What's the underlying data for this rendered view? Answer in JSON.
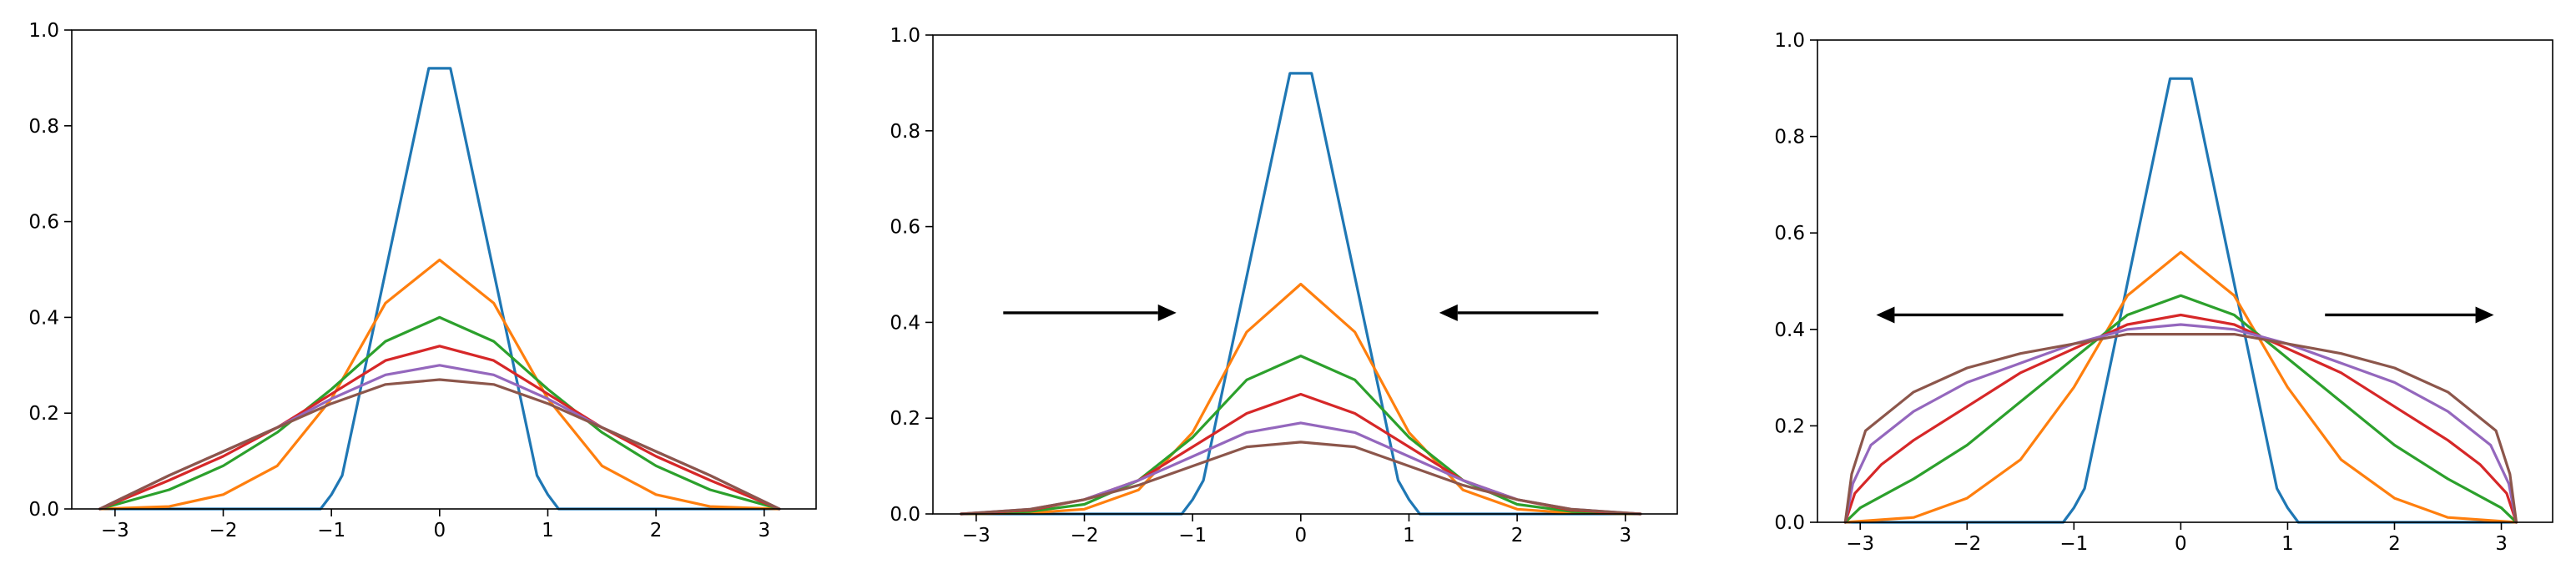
{
  "figure": {
    "series_colors": [
      "#1f77b4",
      "#ff7f0e",
      "#2ca02c",
      "#d62728",
      "#9467bd",
      "#8c564b"
    ],
    "axis_color": "#000000",
    "arrow_color": "#000000"
  },
  "chart_data": [
    {
      "type": "line",
      "title": "",
      "xlabel": "",
      "ylabel": "",
      "xlim": [
        -3.4,
        3.48
      ],
      "ylim": [
        0,
        1.0
      ],
      "xticks": [
        -3,
        -2,
        -1,
        0,
        1,
        2,
        3
      ],
      "xtick_labels": [
        "−3",
        "−2",
        "−1",
        "0",
        "1",
        "2",
        "3"
      ],
      "yticks": [
        0.0,
        0.2,
        0.4,
        0.6,
        0.8,
        1.0
      ],
      "ytick_labels": [
        "0.0",
        "0.2",
        "0.4",
        "0.6",
        "0.8",
        "1.0"
      ],
      "grid": false,
      "legend": null,
      "annotations": [],
      "series": [
        {
          "color": "#1f77b4",
          "x": [
            -3.14,
            -1.1,
            -1.0,
            -0.9,
            -0.1,
            0.1,
            0.9,
            1.0,
            1.1,
            3.14
          ],
          "y": [
            0.0,
            0.0,
            0.03,
            0.07,
            0.92,
            0.92,
            0.07,
            0.03,
            0.0,
            0.0
          ]
        },
        {
          "color": "#ff7f0e",
          "x": [
            -3.14,
            -2.5,
            -2.0,
            -1.5,
            -1.0,
            -0.5,
            0.0,
            0.5,
            1.0,
            1.5,
            2.0,
            2.5,
            3.14
          ],
          "y": [
            0.0,
            0.005,
            0.03,
            0.09,
            0.23,
            0.43,
            0.52,
            0.43,
            0.23,
            0.09,
            0.03,
            0.005,
            0.0
          ]
        },
        {
          "color": "#2ca02c",
          "x": [
            -3.14,
            -2.5,
            -2.0,
            -1.5,
            -1.0,
            -0.5,
            0.0,
            0.5,
            1.0,
            1.5,
            2.0,
            2.5,
            3.14
          ],
          "y": [
            0.0,
            0.04,
            0.09,
            0.16,
            0.25,
            0.35,
            0.4,
            0.35,
            0.25,
            0.16,
            0.09,
            0.04,
            0.0
          ]
        },
        {
          "color": "#d62728",
          "x": [
            -3.14,
            -2.5,
            -2.0,
            -1.5,
            -1.0,
            -0.5,
            0.0,
            0.5,
            1.0,
            1.5,
            2.0,
            2.5,
            3.14
          ],
          "y": [
            0.0,
            0.06,
            0.11,
            0.17,
            0.24,
            0.31,
            0.34,
            0.31,
            0.24,
            0.17,
            0.11,
            0.06,
            0.0
          ]
        },
        {
          "color": "#9467bd",
          "x": [
            -3.14,
            -2.5,
            -2.0,
            -1.5,
            -1.0,
            -0.5,
            0.0,
            0.5,
            1.0,
            1.5,
            2.0,
            2.5,
            3.14
          ],
          "y": [
            0.0,
            0.07,
            0.12,
            0.17,
            0.23,
            0.28,
            0.3,
            0.28,
            0.23,
            0.17,
            0.12,
            0.07,
            0.0
          ]
        },
        {
          "color": "#8c564b",
          "x": [
            -3.14,
            -2.5,
            -2.0,
            -1.5,
            -1.0,
            -0.5,
            0.0,
            0.5,
            1.0,
            1.5,
            2.0,
            2.5,
            3.14
          ],
          "y": [
            0.0,
            0.07,
            0.12,
            0.17,
            0.22,
            0.26,
            0.27,
            0.26,
            0.22,
            0.17,
            0.12,
            0.07,
            0.0
          ]
        }
      ]
    },
    {
      "type": "line",
      "title": "",
      "xlabel": "",
      "ylabel": "",
      "xlim": [
        -3.4,
        3.48
      ],
      "ylim": [
        0,
        1.0
      ],
      "xticks": [
        -3,
        -2,
        -1,
        0,
        1,
        2,
        3
      ],
      "xtick_labels": [
        "−3",
        "−2",
        "−1",
        "0",
        "1",
        "2",
        "3"
      ],
      "yticks": [
        0.0,
        0.2,
        0.4,
        0.6,
        0.8,
        1.0
      ],
      "ytick_labels": [
        "0.0",
        "0.2",
        "0.4",
        "0.6",
        "0.8",
        "1.0"
      ],
      "grid": false,
      "legend": null,
      "annotations": [
        {
          "type": "arrow",
          "direction": "right",
          "from": [
            -2.75,
            0.42
          ],
          "to": [
            -1.15,
            0.42
          ]
        },
        {
          "type": "arrow",
          "direction": "left",
          "from": [
            2.75,
            0.42
          ],
          "to": [
            1.28,
            0.42
          ]
        }
      ],
      "series": [
        {
          "color": "#1f77b4",
          "x": [
            -3.14,
            -1.1,
            -1.0,
            -0.9,
            -0.1,
            0.1,
            0.9,
            1.0,
            1.1,
            3.14
          ],
          "y": [
            0.0,
            0.0,
            0.03,
            0.07,
            0.92,
            0.92,
            0.07,
            0.03,
            0.0,
            0.0
          ]
        },
        {
          "color": "#ff7f0e",
          "x": [
            -3.14,
            -2.5,
            -2.0,
            -1.5,
            -1.0,
            -0.5,
            0.0,
            0.5,
            1.0,
            1.5,
            2.0,
            2.5,
            3.14
          ],
          "y": [
            0.0,
            0.002,
            0.01,
            0.05,
            0.17,
            0.38,
            0.48,
            0.38,
            0.17,
            0.05,
            0.01,
            0.002,
            0.0
          ]
        },
        {
          "color": "#2ca02c",
          "x": [
            -3.14,
            -2.5,
            -2.0,
            -1.5,
            -1.0,
            -0.5,
            0.0,
            0.5,
            1.0,
            1.5,
            2.0,
            2.5,
            3.14
          ],
          "y": [
            0.0,
            0.005,
            0.02,
            0.07,
            0.16,
            0.28,
            0.33,
            0.28,
            0.16,
            0.07,
            0.02,
            0.005,
            0.0
          ]
        },
        {
          "color": "#d62728",
          "x": [
            -3.14,
            -2.5,
            -2.0,
            -1.5,
            -1.0,
            -0.5,
            0.0,
            0.5,
            1.0,
            1.5,
            2.0,
            2.5,
            3.14
          ],
          "y": [
            0.0,
            0.008,
            0.03,
            0.07,
            0.14,
            0.21,
            0.25,
            0.21,
            0.14,
            0.07,
            0.03,
            0.008,
            0.0
          ]
        },
        {
          "color": "#9467bd",
          "x": [
            -3.14,
            -2.5,
            -2.0,
            -1.5,
            -1.0,
            -0.5,
            0.0,
            0.5,
            1.0,
            1.5,
            2.0,
            2.5,
            3.14
          ],
          "y": [
            0.0,
            0.01,
            0.03,
            0.07,
            0.12,
            0.17,
            0.19,
            0.17,
            0.12,
            0.07,
            0.03,
            0.01,
            0.0
          ]
        },
        {
          "color": "#8c564b",
          "x": [
            -3.14,
            -2.5,
            -2.0,
            -1.5,
            -1.0,
            -0.5,
            0.0,
            0.5,
            1.0,
            1.5,
            2.0,
            2.5,
            3.14
          ],
          "y": [
            0.0,
            0.01,
            0.03,
            0.06,
            0.1,
            0.14,
            0.15,
            0.14,
            0.1,
            0.06,
            0.03,
            0.01,
            0.0
          ]
        }
      ]
    },
    {
      "type": "line",
      "title": "",
      "xlabel": "",
      "ylabel": "",
      "xlim": [
        -3.4,
        3.48
      ],
      "ylim": [
        0,
        1.0
      ],
      "xticks": [
        -3,
        -2,
        -1,
        0,
        1,
        2,
        3
      ],
      "xtick_labels": [
        "−3",
        "−2",
        "−1",
        "0",
        "1",
        "2",
        "3"
      ],
      "yticks": [
        0.0,
        0.2,
        0.4,
        0.6,
        0.8,
        1.0
      ],
      "ytick_labels": [
        "0.0",
        "0.2",
        "0.4",
        "0.6",
        "0.8",
        "1.0"
      ],
      "grid": false,
      "legend": null,
      "annotations": [
        {
          "type": "arrow",
          "direction": "left",
          "from": [
            -1.1,
            0.43
          ],
          "to": [
            -2.85,
            0.43
          ]
        },
        {
          "type": "arrow",
          "direction": "right",
          "from": [
            1.35,
            0.43
          ],
          "to": [
            2.93,
            0.43
          ]
        }
      ],
      "series": [
        {
          "color": "#1f77b4",
          "x": [
            -3.14,
            -1.1,
            -1.0,
            -0.9,
            -0.1,
            0.1,
            0.9,
            1.0,
            1.1,
            3.14
          ],
          "y": [
            0.0,
            0.0,
            0.03,
            0.07,
            0.92,
            0.92,
            0.07,
            0.03,
            0.0,
            0.0
          ]
        },
        {
          "color": "#ff7f0e",
          "x": [
            -3.14,
            -2.5,
            -2.0,
            -1.5,
            -1.0,
            -0.5,
            0.0,
            0.5,
            1.0,
            1.5,
            2.0,
            2.5,
            3.14
          ],
          "y": [
            0.0,
            0.01,
            0.05,
            0.13,
            0.28,
            0.47,
            0.56,
            0.47,
            0.28,
            0.13,
            0.05,
            0.01,
            0.0
          ]
        },
        {
          "color": "#2ca02c",
          "x": [
            -3.14,
            -3.0,
            -2.5,
            -2.0,
            -1.5,
            -1.0,
            -0.5,
            0.0,
            0.5,
            1.0,
            1.5,
            2.0,
            2.5,
            3.0,
            3.14
          ],
          "y": [
            0.0,
            0.03,
            0.09,
            0.16,
            0.25,
            0.34,
            0.43,
            0.47,
            0.43,
            0.34,
            0.25,
            0.16,
            0.09,
            0.03,
            0.0
          ]
        },
        {
          "color": "#d62728",
          "x": [
            -3.14,
            -3.05,
            -2.8,
            -2.5,
            -2.0,
            -1.5,
            -1.0,
            -0.5,
            0.0,
            0.5,
            1.0,
            1.5,
            2.0,
            2.5,
            2.8,
            3.05,
            3.14
          ],
          "y": [
            0.0,
            0.06,
            0.12,
            0.17,
            0.24,
            0.31,
            0.36,
            0.41,
            0.43,
            0.41,
            0.36,
            0.31,
            0.24,
            0.17,
            0.12,
            0.06,
            0.0
          ]
        },
        {
          "color": "#9467bd",
          "x": [
            -3.14,
            -3.07,
            -2.9,
            -2.5,
            -2.0,
            -1.5,
            -1.0,
            -0.5,
            0.0,
            0.5,
            1.0,
            1.5,
            2.0,
            2.5,
            2.9,
            3.07,
            3.14
          ],
          "y": [
            0.0,
            0.08,
            0.16,
            0.23,
            0.29,
            0.33,
            0.37,
            0.4,
            0.41,
            0.4,
            0.37,
            0.33,
            0.29,
            0.23,
            0.16,
            0.08,
            0.0
          ]
        },
        {
          "color": "#8c564b",
          "x": [
            -3.14,
            -3.08,
            -2.95,
            -2.5,
            -2.0,
            -1.5,
            -1.0,
            -0.5,
            0.0,
            0.5,
            1.0,
            1.5,
            2.0,
            2.5,
            2.95,
            3.08,
            3.14
          ],
          "y": [
            0.0,
            0.1,
            0.19,
            0.27,
            0.32,
            0.35,
            0.37,
            0.39,
            0.39,
            0.39,
            0.37,
            0.35,
            0.32,
            0.27,
            0.19,
            0.1,
            0.0
          ]
        }
      ]
    }
  ]
}
